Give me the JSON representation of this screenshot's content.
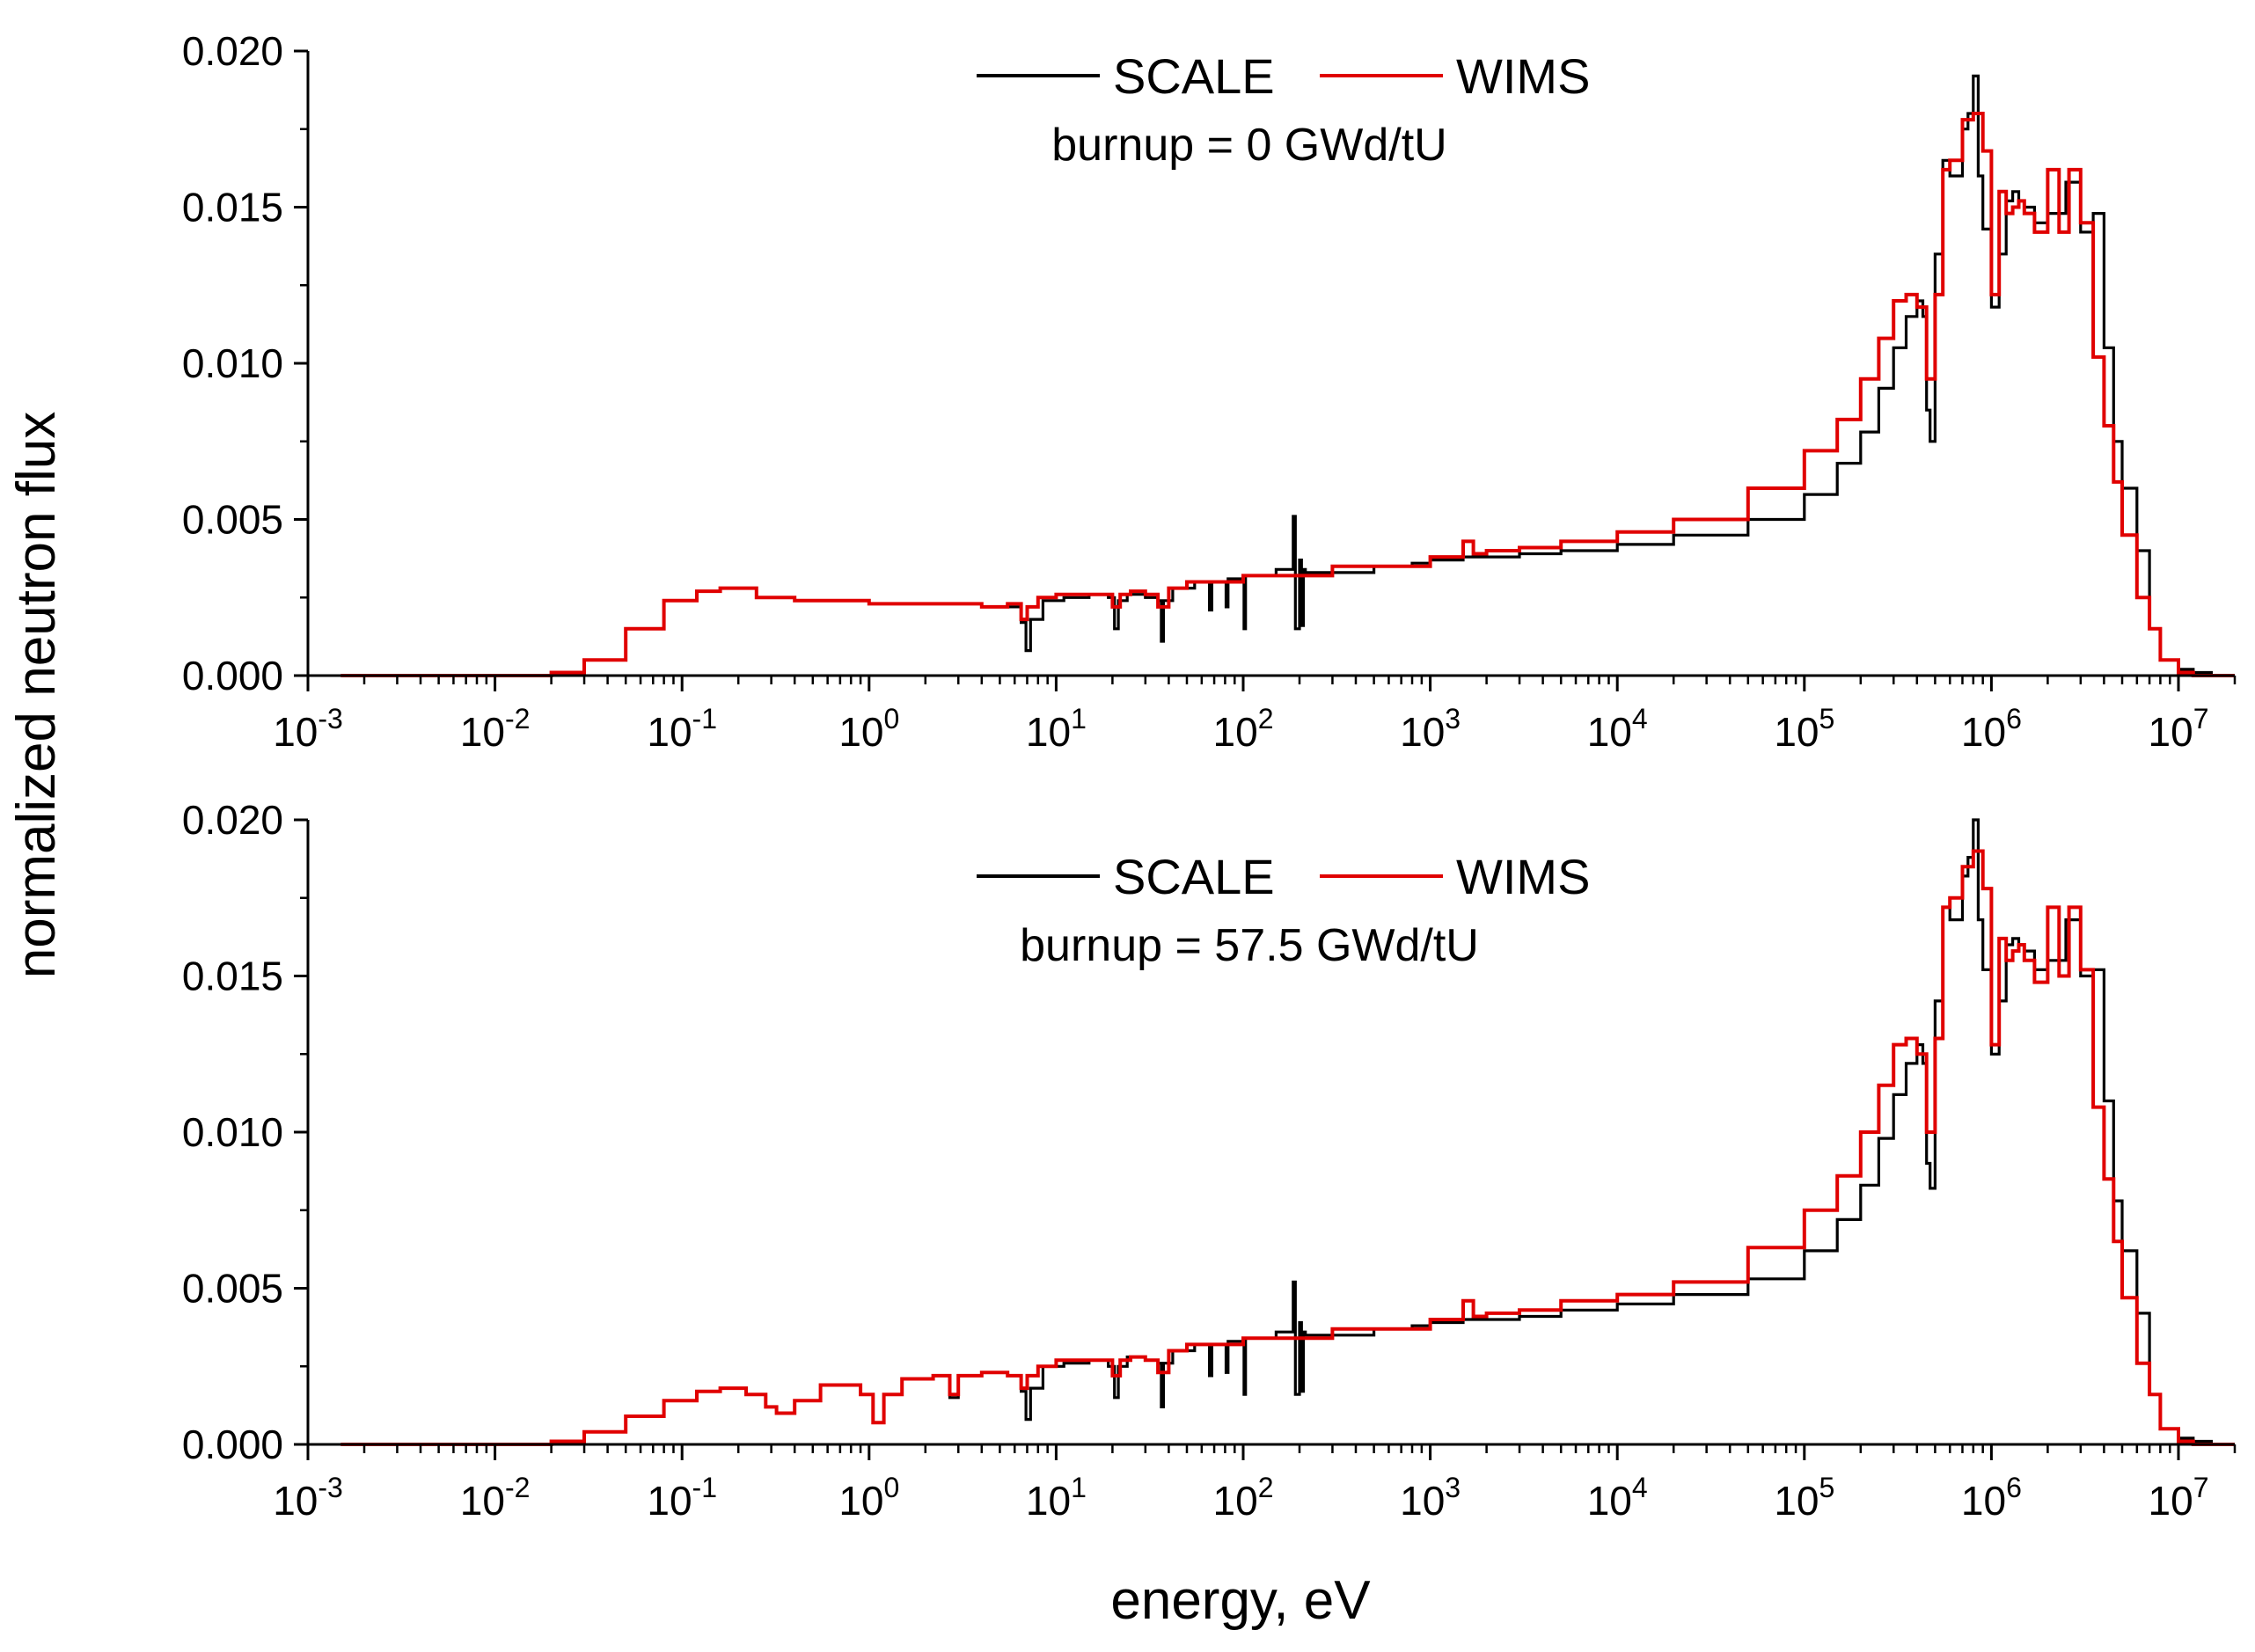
{
  "figure": {
    "ylabel": "normalized neutron flux",
    "xlabel": "energy, eV"
  },
  "chart_data": [
    {
      "type": "line",
      "step": true,
      "annotation": "burnup = 0 GWd/tU",
      "x_scale": "log",
      "xlim": [
        0.001,
        20000000
      ],
      "ylim": [
        0,
        0.02
      ],
      "x_ticks": [
        {
          "base": "10",
          "exp": "-3"
        },
        {
          "base": "10",
          "exp": "-2"
        },
        {
          "base": "10",
          "exp": "-1"
        },
        {
          "base": "10",
          "exp": "0"
        },
        {
          "base": "10",
          "exp": "1"
        },
        {
          "base": "10",
          "exp": "2"
        },
        {
          "base": "10",
          "exp": "3"
        },
        {
          "base": "10",
          "exp": "4"
        },
        {
          "base": "10",
          "exp": "5"
        },
        {
          "base": "10",
          "exp": "6"
        },
        {
          "base": "10",
          "exp": "7"
        }
      ],
      "y_ticks": [
        "0.000",
        "0.005",
        "0.010",
        "0.015",
        "0.020"
      ],
      "legend": {
        "position": "top-center"
      },
      "series": [
        {
          "name": "SCALE",
          "color": "#000000",
          "x": [
            0.0015,
            0.01,
            0.02,
            0.03,
            0.05,
            0.08,
            0.12,
            0.16,
            0.25,
            0.4,
            0.7,
            1.0,
            1.5,
            2.5,
            4.0,
            5.5,
            6.5,
            6.9,
            7.3,
            8.5,
            11,
            15,
            19,
            20.5,
            21.5,
            24,
            30,
            35,
            36.5,
            37.5,
            42,
            55,
            65,
            66,
            68,
            75,
            80,
            81,
            83,
            95,
            100,
            101,
            103,
            150,
            180,
            185,
            190,
            200,
            205,
            210,
            215,
            300,
            500,
            800,
            1000,
            1500,
            2000,
            3000,
            5000,
            10000,
            20000,
            50000,
            100000,
            150000,
            200000,
            250000,
            300000,
            350000,
            400000,
            430000,
            450000,
            470000,
            500000,
            550000,
            600000,
            700000,
            750000,
            800000,
            850000,
            900000,
            1000000,
            1100000,
            1200000,
            1300000,
            1400000,
            1500000,
            1700000,
            2000000,
            2500000,
            3000000,
            3500000,
            4000000,
            4500000,
            5000000,
            6000000,
            7000000,
            8000000,
            10000000,
            12000000,
            15000000,
            20000000
          ],
          "y": [
            0,
            0,
            0.0001,
            0.0005,
            0.0015,
            0.0024,
            0.0027,
            0.0028,
            0.0025,
            0.0024,
            0.0024,
            0.0023,
            0.0023,
            0.0023,
            0.0022,
            0.0022,
            0.0017,
            0.0008,
            0.0018,
            0.0024,
            0.0025,
            0.0026,
            0.0025,
            0.0015,
            0.0024,
            0.0026,
            0.0025,
            0.0024,
            0.0011,
            0.0024,
            0.0028,
            0.003,
            0.003,
            0.0021,
            0.003,
            0.003,
            0.003,
            0.0022,
            0.0031,
            0.0031,
            0.0031,
            0.0015,
            0.0032,
            0.0034,
            0.0034,
            0.0051,
            0.0015,
            0.0037,
            0.0016,
            0.0034,
            0.0033,
            0.0033,
            0.0035,
            0.0036,
            0.0037,
            0.0038,
            0.0038,
            0.0039,
            0.004,
            0.0042,
            0.0045,
            0.005,
            0.0058,
            0.0068,
            0.0078,
            0.0092,
            0.0105,
            0.0115,
            0.012,
            0.0115,
            0.0085,
            0.0075,
            0.0135,
            0.0165,
            0.016,
            0.0175,
            0.018,
            0.0192,
            0.016,
            0.0143,
            0.0118,
            0.0135,
            0.0152,
            0.0155,
            0.0152,
            0.015,
            0.0145,
            0.0148,
            0.0158,
            0.0142,
            0.0148,
            0.0105,
            0.0075,
            0.006,
            0.004,
            0.0015,
            0.0005,
            0.0002,
            0.0001,
            0,
            0
          ]
        },
        {
          "name": "WIMS",
          "color": "#e00000",
          "x": [
            0.0015,
            0.01,
            0.02,
            0.03,
            0.05,
            0.08,
            0.12,
            0.16,
            0.25,
            0.4,
            0.7,
            1.0,
            1.5,
            2.5,
            4.0,
            5.5,
            6.5,
            7.0,
            8.0,
            10,
            15,
            20,
            22,
            25,
            30,
            35,
            40,
            50,
            100,
            300,
            1000,
            1500,
            1700,
            2000,
            3000,
            5000,
            10000,
            20000,
            50000,
            100000,
            150000,
            200000,
            250000,
            300000,
            350000,
            400000,
            450000,
            500000,
            550000,
            600000,
            700000,
            800000,
            900000,
            1000000,
            1100000,
            1200000,
            1300000,
            1400000,
            1500000,
            1700000,
            2000000,
            2300000,
            2600000,
            3000000,
            3500000,
            4000000,
            4500000,
            5000000,
            6000000,
            7000000,
            8000000,
            10000000,
            12000000,
            15000000,
            20000000
          ],
          "y": [
            0,
            0,
            0.0001,
            0.0005,
            0.0015,
            0.0024,
            0.0027,
            0.0028,
            0.0025,
            0.0024,
            0.0024,
            0.0023,
            0.0023,
            0.0023,
            0.0022,
            0.0023,
            0.0018,
            0.0022,
            0.0025,
            0.0026,
            0.0026,
            0.0022,
            0.0026,
            0.0027,
            0.0026,
            0.0022,
            0.0028,
            0.003,
            0.0032,
            0.0035,
            0.0038,
            0.0043,
            0.0039,
            0.004,
            0.0041,
            0.0043,
            0.0046,
            0.005,
            0.006,
            0.0072,
            0.0082,
            0.0095,
            0.0108,
            0.012,
            0.0122,
            0.0118,
            0.0095,
            0.0122,
            0.0162,
            0.0165,
            0.0178,
            0.018,
            0.0168,
            0.0122,
            0.0155,
            0.0148,
            0.015,
            0.0152,
            0.0148,
            0.0142,
            0.0162,
            0.0142,
            0.0162,
            0.0145,
            0.0102,
            0.008,
            0.0062,
            0.0045,
            0.0025,
            0.0015,
            0.0005,
            0.0001,
            0,
            0,
            0
          ]
        }
      ]
    },
    {
      "type": "line",
      "step": true,
      "annotation": "burnup = 57.5 GWd/tU",
      "x_scale": "log",
      "xlim": [
        0.001,
        20000000
      ],
      "ylim": [
        0,
        0.02
      ],
      "x_ticks": [
        {
          "base": "10",
          "exp": "-3"
        },
        {
          "base": "10",
          "exp": "-2"
        },
        {
          "base": "10",
          "exp": "-1"
        },
        {
          "base": "10",
          "exp": "0"
        },
        {
          "base": "10",
          "exp": "1"
        },
        {
          "base": "10",
          "exp": "2"
        },
        {
          "base": "10",
          "exp": "3"
        },
        {
          "base": "10",
          "exp": "4"
        },
        {
          "base": "10",
          "exp": "5"
        },
        {
          "base": "10",
          "exp": "6"
        },
        {
          "base": "10",
          "exp": "7"
        }
      ],
      "y_ticks": [
        "0.000",
        "0.005",
        "0.010",
        "0.015",
        "0.020"
      ],
      "legend": {
        "position": "top-center"
      },
      "series": [
        {
          "name": "SCALE",
          "color": "#000000",
          "x": [
            0.0015,
            0.01,
            0.02,
            0.03,
            0.05,
            0.08,
            0.12,
            0.16,
            0.22,
            0.28,
            0.32,
            0.4,
            0.55,
            0.75,
            0.9,
            1.05,
            1.2,
            1.5,
            2.2,
            2.7,
            3.0,
            4.0,
            5.5,
            6.5,
            6.9,
            7.3,
            8.5,
            11,
            15,
            19,
            20.5,
            21.5,
            24,
            30,
            35,
            36.5,
            37.5,
            42,
            55,
            65,
            66,
            68,
            75,
            80,
            81,
            83,
            95,
            100,
            101,
            103,
            150,
            180,
            185,
            190,
            200,
            205,
            210,
            215,
            300,
            500,
            800,
            1000,
            1500,
            2000,
            3000,
            5000,
            10000,
            20000,
            50000,
            100000,
            150000,
            200000,
            250000,
            300000,
            350000,
            400000,
            430000,
            450000,
            470000,
            500000,
            550000,
            600000,
            700000,
            750000,
            800000,
            850000,
            900000,
            1000000,
            1100000,
            1200000,
            1300000,
            1400000,
            1500000,
            1700000,
            2000000,
            2500000,
            3000000,
            3500000,
            4000000,
            4500000,
            5000000,
            6000000,
            7000000,
            8000000,
            10000000,
            12000000,
            15000000,
            20000000
          ],
          "y": [
            0,
            0,
            0.0001,
            0.0004,
            0.0009,
            0.0014,
            0.0017,
            0.0018,
            0.0016,
            0.0012,
            0.001,
            0.0014,
            0.0019,
            0.0019,
            0.0016,
            0.0007,
            0.0016,
            0.0021,
            0.0022,
            0.0015,
            0.0022,
            0.0023,
            0.0022,
            0.0017,
            0.0008,
            0.0018,
            0.0025,
            0.0026,
            0.0027,
            0.0025,
            0.0015,
            0.0025,
            0.0028,
            0.0027,
            0.0026,
            0.0012,
            0.0026,
            0.003,
            0.0032,
            0.0032,
            0.0022,
            0.0032,
            0.0032,
            0.0032,
            0.0023,
            0.0033,
            0.0033,
            0.0033,
            0.0016,
            0.0034,
            0.0036,
            0.0036,
            0.0052,
            0.0016,
            0.0039,
            0.0017,
            0.0036,
            0.0035,
            0.0035,
            0.0037,
            0.0038,
            0.0039,
            0.004,
            0.004,
            0.0041,
            0.0043,
            0.0045,
            0.0048,
            0.0053,
            0.0062,
            0.0072,
            0.0083,
            0.0098,
            0.0112,
            0.0122,
            0.0128,
            0.0122,
            0.009,
            0.0082,
            0.0142,
            0.0172,
            0.0168,
            0.0182,
            0.0188,
            0.02,
            0.0168,
            0.0152,
            0.0125,
            0.0142,
            0.016,
            0.0162,
            0.016,
            0.0158,
            0.0152,
            0.0155,
            0.0168,
            0.015,
            0.0152,
            0.011,
            0.0078,
            0.0062,
            0.0042,
            0.0016,
            0.0005,
            0.0002,
            0.0001,
            0,
            0
          ]
        },
        {
          "name": "WIMS",
          "color": "#e00000",
          "x": [
            0.0015,
            0.01,
            0.02,
            0.03,
            0.05,
            0.08,
            0.12,
            0.16,
            0.22,
            0.28,
            0.32,
            0.4,
            0.55,
            0.75,
            0.9,
            1.05,
            1.2,
            1.5,
            2.2,
            2.7,
            3.0,
            4.0,
            5.5,
            6.5,
            7.0,
            8.0,
            10,
            15,
            20,
            22,
            25,
            30,
            35,
            40,
            50,
            100,
            300,
            1000,
            1500,
            1700,
            2000,
            3000,
            5000,
            10000,
            20000,
            50000,
            100000,
            150000,
            200000,
            250000,
            300000,
            350000,
            400000,
            450000,
            500000,
            550000,
            600000,
            700000,
            800000,
            900000,
            1000000,
            1100000,
            1200000,
            1300000,
            1400000,
            1500000,
            1700000,
            2000000,
            2300000,
            2600000,
            3000000,
            3500000,
            4000000,
            4500000,
            5000000,
            6000000,
            7000000,
            8000000,
            10000000,
            12000000,
            15000000,
            20000000
          ],
          "y": [
            0,
            0,
            0.0001,
            0.0004,
            0.0009,
            0.0014,
            0.0017,
            0.0018,
            0.0016,
            0.0012,
            0.001,
            0.0014,
            0.0019,
            0.0019,
            0.0016,
            0.0007,
            0.0016,
            0.0021,
            0.0022,
            0.0016,
            0.0022,
            0.0023,
            0.0022,
            0.0018,
            0.0022,
            0.0025,
            0.0027,
            0.0027,
            0.0022,
            0.0027,
            0.0028,
            0.0027,
            0.0023,
            0.003,
            0.0032,
            0.0034,
            0.0037,
            0.004,
            0.0046,
            0.0041,
            0.0042,
            0.0043,
            0.0046,
            0.0048,
            0.0052,
            0.0063,
            0.0075,
            0.0086,
            0.01,
            0.0115,
            0.0128,
            0.013,
            0.0125,
            0.01,
            0.013,
            0.0172,
            0.0175,
            0.0185,
            0.019,
            0.0178,
            0.0128,
            0.0162,
            0.0155,
            0.0158,
            0.016,
            0.0155,
            0.0148,
            0.0172,
            0.015,
            0.0172,
            0.0152,
            0.0108,
            0.0085,
            0.0065,
            0.0047,
            0.0026,
            0.0016,
            0.0005,
            0.0001,
            0,
            0,
            0
          ]
        }
      ]
    }
  ]
}
